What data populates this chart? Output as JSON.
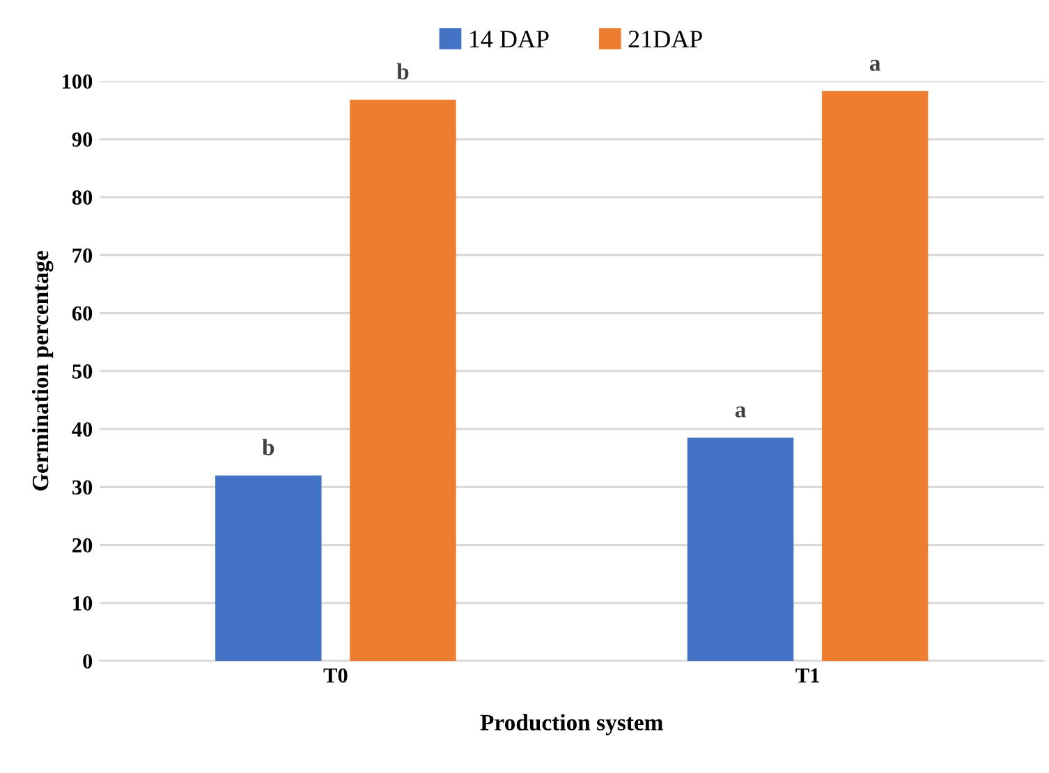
{
  "chart_data": {
    "type": "bar",
    "xlabel": "Production system",
    "ylabel": "Germination percentage",
    "categories": [
      "T0",
      "T1"
    ],
    "series": [
      {
        "name": "14 DAP",
        "color": "#4472c4",
        "values": [
          32,
          38.5
        ],
        "value_labels": [
          "b",
          "a"
        ]
      },
      {
        "name": "21DAP",
        "color": "#ed7d31",
        "values": [
          96.8,
          98.3
        ],
        "value_labels": [
          "b",
          "a"
        ]
      }
    ],
    "ylim": [
      0,
      100
    ],
    "yticks": [
      0,
      10,
      20,
      30,
      40,
      50,
      60,
      70,
      80,
      90,
      100
    ],
    "grid": "y",
    "legend": "top"
  }
}
